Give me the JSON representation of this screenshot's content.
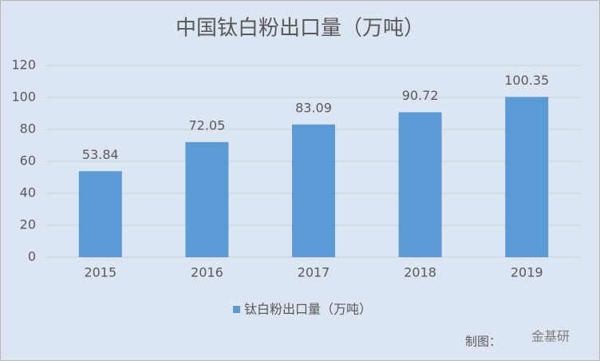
{
  "chart_data": {
    "type": "bar",
    "title": "中国钛白粉出口量（万吨）",
    "categories": [
      "2015",
      "2016",
      "2017",
      "2018",
      "2019"
    ],
    "series": [
      {
        "name": "钛白粉出口量（万吨）",
        "color": "#5b9bd5",
        "values": [
          53.84,
          72.05,
          83.09,
          90.72,
          100.35
        ]
      }
    ],
    "ylim": [
      0,
      120
    ],
    "yticks": [
      0,
      20,
      40,
      60,
      80,
      100,
      120
    ],
    "grid": true,
    "legend": "bottom",
    "annotations": [
      "制图：",
      "金基研"
    ]
  }
}
